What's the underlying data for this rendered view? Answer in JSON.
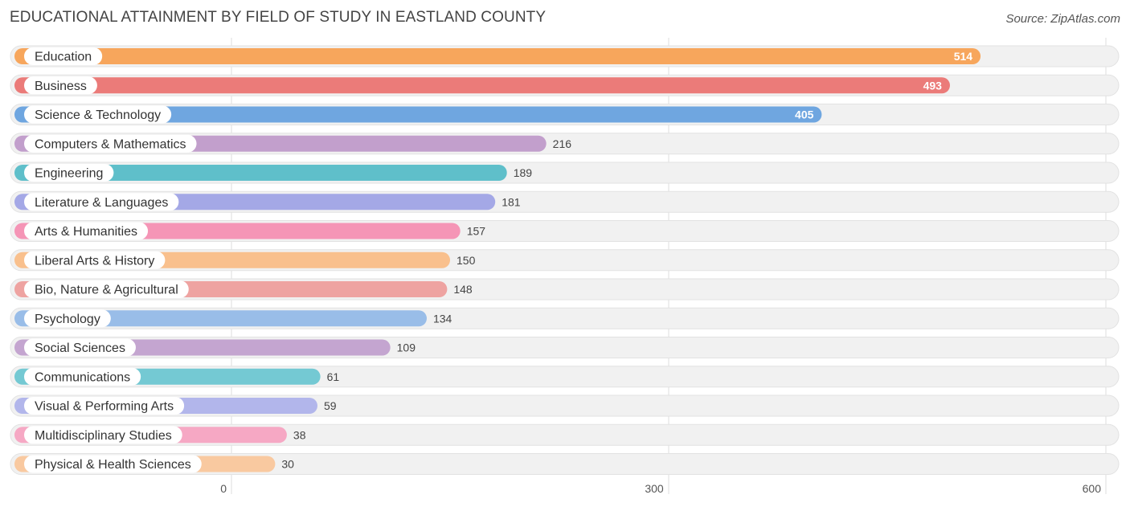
{
  "title": "EDUCATIONAL ATTAINMENT BY FIELD OF STUDY IN EASTLAND COUNTY",
  "source": "Source: ZipAtlas.com",
  "chart_data": {
    "type": "bar",
    "orientation": "horizontal",
    "title": "EDUCATIONAL ATTAINMENT BY FIELD OF STUDY IN EASTLAND COUNTY",
    "xlabel": "",
    "ylabel": "",
    "xlim": [
      0,
      600
    ],
    "ticks": [
      0,
      300,
      600
    ],
    "tick_labels": [
      "0",
      "300",
      "600"
    ],
    "categories": [
      "Education",
      "Business",
      "Science & Technology",
      "Computers & Mathematics",
      "Engineering",
      "Literature & Languages",
      "Arts & Humanities",
      "Liberal Arts & History",
      "Bio, Nature & Agricultural",
      "Psychology",
      "Social Sciences",
      "Communications",
      "Visual & Performing Arts",
      "Multidisciplinary Studies",
      "Physical & Health Sciences"
    ],
    "values": [
      514,
      493,
      405,
      216,
      189,
      181,
      157,
      150,
      148,
      134,
      109,
      61,
      59,
      38,
      30
    ],
    "colors": [
      "#f7a65c",
      "#eb7b79",
      "#6fa6e0",
      "#c29fcc",
      "#5fbfca",
      "#a4a8e6",
      "#f595b6",
      "#f9c08d",
      "#eea3a1",
      "#99bde8",
      "#c4a5d0",
      "#74c9d3",
      "#b2b6eb",
      "#f6a8c4",
      "#f9c9a0"
    ]
  }
}
